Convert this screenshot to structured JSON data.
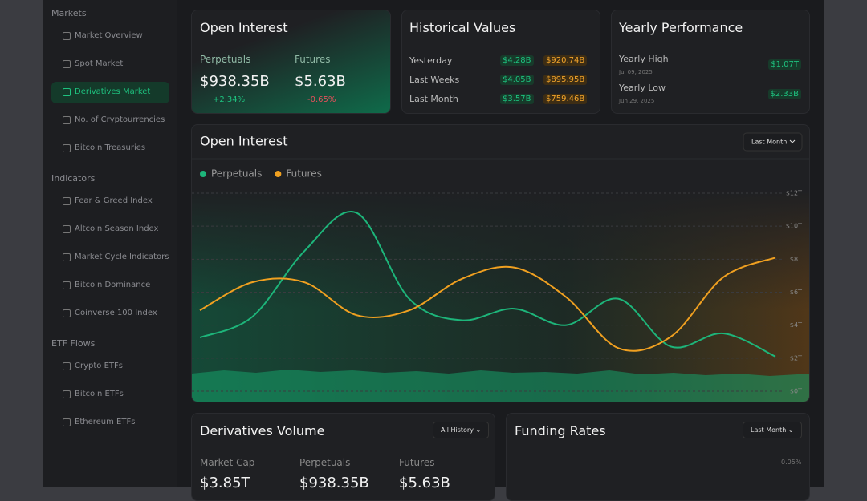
{
  "sidebar": {
    "sections": [
      {
        "heading": "Markets",
        "items": [
          "Market Overview",
          "Spot Market",
          "Derivatives Market",
          "No. of Cryptourrencies",
          "Bitcoin Treasuries"
        ]
      },
      {
        "heading": "Indicators",
        "items": [
          "Fear & Greed Index",
          "Altcoin Season Index",
          "Market Cycle Indicators",
          "Bitcoin Dominance",
          "Coinverse 100 Index"
        ]
      },
      {
        "heading": "ETF Flows",
        "items": [
          "Crypto ETFs",
          "Bitcoin ETFs",
          "Ethereum ETFs"
        ]
      }
    ],
    "active": "Derivatives Market"
  },
  "open_interest_card": {
    "title": "Open Interest",
    "perpetuals_label": "Perpetuals",
    "perpetuals_value": "$938.35B",
    "perpetuals_change": "+2.34%",
    "futures_label": "Futures",
    "futures_value": "$5.63B",
    "futures_change": "-0.65%"
  },
  "historical_card": {
    "title": "Historical Values",
    "rows": [
      [
        "Yesterday",
        "$4.28B",
        "$920.74B"
      ],
      [
        "Last Weeks",
        "$4.05B",
        "$895.95B"
      ],
      [
        "Last Month",
        "$3.57B",
        "$759.46B"
      ]
    ]
  },
  "yearly_card": {
    "title": "Yearly Performance",
    "high_label": "Yearly High",
    "high_date": "Jul 09, 2025",
    "high_value": "$1.07T",
    "low_label": "Yearly Low",
    "low_date": "Jun 29, 2025",
    "low_value": "$2.33B"
  },
  "chart_data": {
    "type": "line",
    "title": "Open Interest",
    "period": "Last Month",
    "categories": [
      null,
      null,
      null,
      null,
      null,
      null,
      null,
      null,
      null,
      null,
      null,
      null
    ],
    "series": [
      {
        "name": "Perpetuals",
        "color": "#1db57a",
        "values": [
          3.25,
          4.5,
          8.5,
          10.8,
          5.6,
          4.3,
          5.0,
          4.0,
          5.6,
          2.7,
          3.5,
          2.1
        ]
      },
      {
        "name": "Futures",
        "color": "#f0a020",
        "values": [
          4.9,
          6.6,
          6.6,
          4.6,
          4.9,
          6.8,
          7.5,
          5.7,
          2.6,
          3.3,
          6.9,
          8.1
        ]
      }
    ],
    "ylim": [
      0,
      12
    ],
    "yticks": [
      {
        "value": 0,
        "label": "$0T"
      },
      {
        "value": 2,
        "label": "$2T"
      },
      {
        "value": 4,
        "label": "$4T"
      },
      {
        "value": 6,
        "label": "$6T"
      },
      {
        "value": 8,
        "label": "$8T"
      },
      {
        "value": 10,
        "label": "$10T"
      },
      {
        "value": 12,
        "label": "$12T"
      }
    ],
    "grid": true
  },
  "volume_card": {
    "title": "Derivatives Volume",
    "period": "All History",
    "labels": [
      "Market Cap",
      "Perpetuals",
      "Futures"
    ],
    "values": [
      "$3.85T",
      "$938.35B",
      "$5.63B"
    ]
  },
  "funding_card": {
    "title": "Funding Rates",
    "period": "Last Month",
    "axis_label": "0.05%"
  }
}
